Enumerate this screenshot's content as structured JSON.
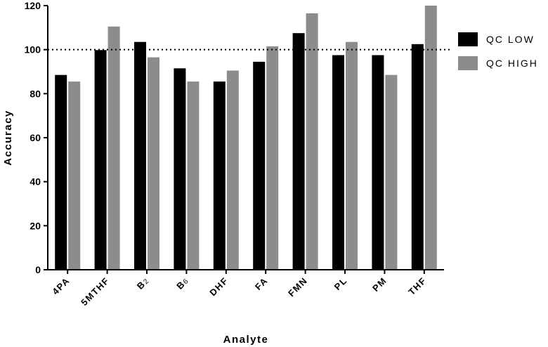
{
  "chart_data": {
    "type": "bar",
    "title": "",
    "xlabel": "Analyte",
    "ylabel": "Accuracy",
    "categories": [
      {
        "base": "4PA",
        "sub": ""
      },
      {
        "base": "5MTHF",
        "sub": ""
      },
      {
        "base": "B",
        "sub": "2"
      },
      {
        "base": "B",
        "sub": "6"
      },
      {
        "base": "DHF",
        "sub": ""
      },
      {
        "base": "FA",
        "sub": ""
      },
      {
        "base": "FMN",
        "sub": ""
      },
      {
        "base": "PL",
        "sub": ""
      },
      {
        "base": "PM",
        "sub": ""
      },
      {
        "base": "THF",
        "sub": ""
      }
    ],
    "series": [
      {
        "name": "QC LOW",
        "color": "#000000",
        "values": [
          88.5,
          99.8,
          103.5,
          91.5,
          85.5,
          94.5,
          107.5,
          97.5,
          97.5,
          102.5
        ]
      },
      {
        "name": "QC HIGH",
        "color": "#8c8c8c",
        "values": [
          85.5,
          110.5,
          96.5,
          85.5,
          90.5,
          101.5,
          116.5,
          103.5,
          88.5,
          120
        ]
      }
    ],
    "ylim": [
      0,
      120
    ],
    "yticks": [
      0,
      20,
      40,
      60,
      80,
      100,
      120
    ],
    "reference_line": {
      "y": 100,
      "style": "dotted"
    },
    "grid": false,
    "legend": {
      "position": "right"
    }
  }
}
